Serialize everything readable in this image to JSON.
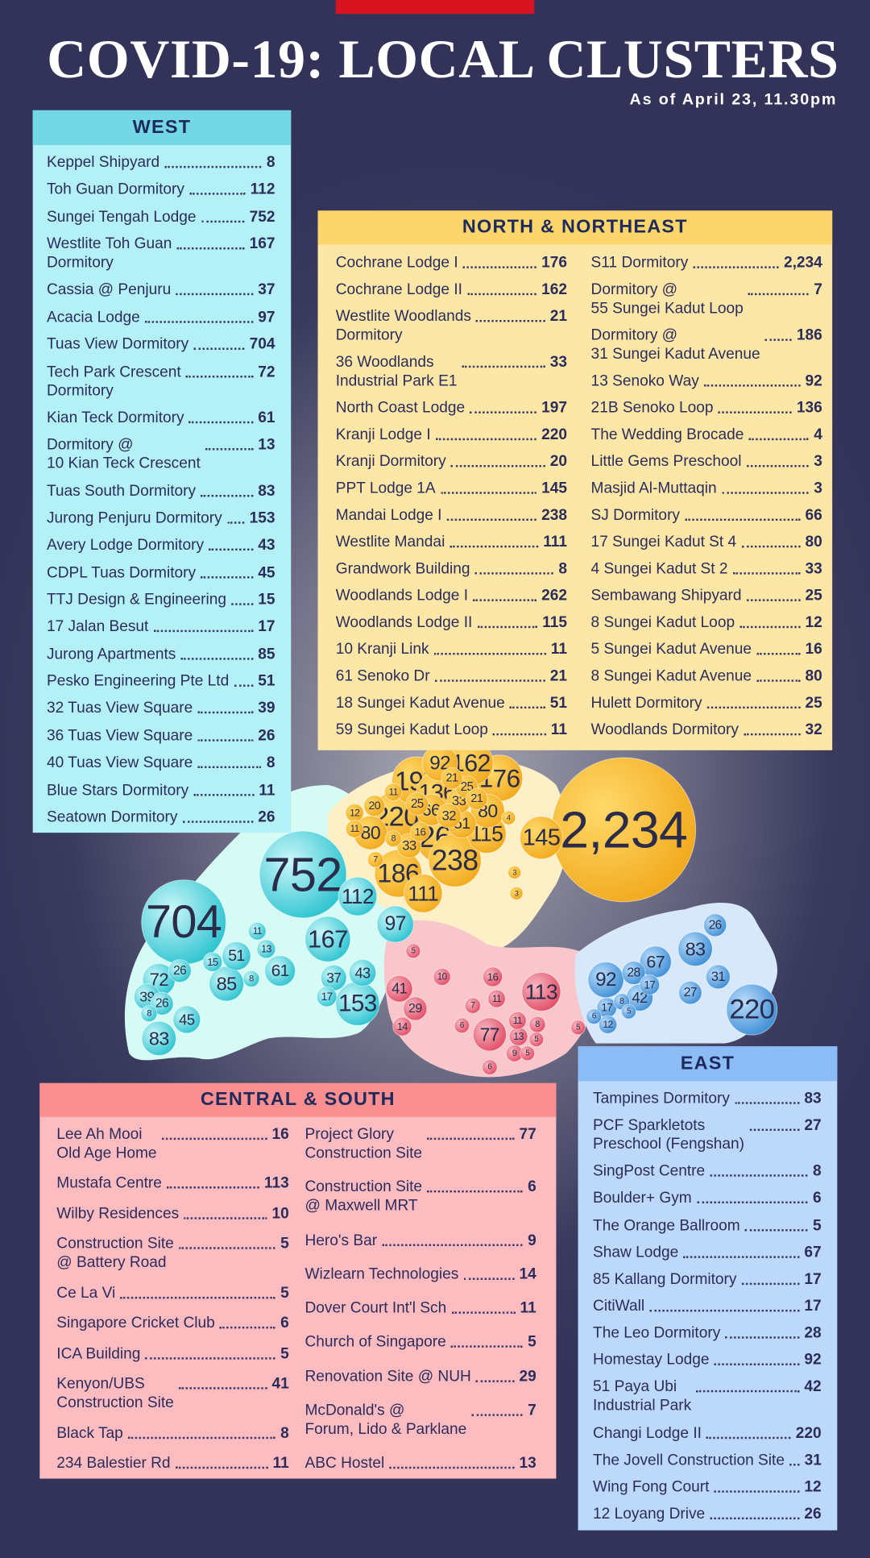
{
  "header": {
    "title": "COVID-19: LOCAL CLUSTERS",
    "subtitle": "As of April 23, 11.30pm"
  },
  "sections": [
    {
      "title": "WEST",
      "columns": [
        [
          {
            "name": "Keppel Shipyard",
            "count": 8
          },
          {
            "name": "Toh Guan Dormitory",
            "count": 112
          },
          {
            "name": "Sungei Tengah Lodge",
            "count": 752
          },
          {
            "name": "Westlite Toh Guan\nDormitory",
            "count": 167
          },
          {
            "name": "Cassia @ Penjuru",
            "count": 37
          },
          {
            "name": "Acacia Lodge",
            "count": 97
          },
          {
            "name": "Tuas View Dormitory",
            "count": 704
          },
          {
            "name": "Tech Park Crescent\nDormitory",
            "count": 72
          },
          {
            "name": "Kian Teck Dormitory",
            "count": 61
          },
          {
            "name": "Dormitory @\n10 Kian Teck Crescent",
            "count": 13
          },
          {
            "name": "Tuas South Dormitory",
            "count": 83
          },
          {
            "name": "Jurong Penjuru Dormitory",
            "count": 153
          },
          {
            "name": "Avery Lodge Dormitory",
            "count": 43
          },
          {
            "name": "CDPL Tuas Dormitory",
            "count": 45
          },
          {
            "name": "TTJ Design & Engineering",
            "count": 15
          },
          {
            "name": "17 Jalan Besut",
            "count": 17
          },
          {
            "name": "Jurong Apartments",
            "count": 85
          },
          {
            "name": "Pesko Engineering Pte Ltd",
            "count": 51
          },
          {
            "name": "32 Tuas View Square",
            "count": 39
          },
          {
            "name": "36 Tuas View Square",
            "count": 26
          },
          {
            "name": "40 Tuas View Square",
            "count": 8
          },
          {
            "name": "Blue Stars Dormitory",
            "count": 11
          },
          {
            "name": "Seatown Dormitory",
            "count": 26
          }
        ]
      ]
    },
    {
      "title": "NORTH & NORTHEAST",
      "columns": [
        [
          {
            "name": "Cochrane Lodge I",
            "count": 176
          },
          {
            "name": "Cochrane Lodge II",
            "count": 162
          },
          {
            "name": "Westlite Woodlands\nDormitory",
            "count": 21
          },
          {
            "name": "36 Woodlands\nIndustrial Park E1",
            "count": 33
          },
          {
            "name": "North Coast Lodge",
            "count": 197
          },
          {
            "name": "Kranji Lodge I",
            "count": 220
          },
          {
            "name": "Kranji Dormitory",
            "count": 20
          },
          {
            "name": "PPT Lodge 1A",
            "count": 145
          },
          {
            "name": "Mandai Lodge I",
            "count": 238
          },
          {
            "name": "Westlite Mandai",
            "count": 111
          },
          {
            "name": "Grandwork Building",
            "count": 8
          },
          {
            "name": "Woodlands Lodge I",
            "count": 262
          },
          {
            "name": "Woodlands Lodge II",
            "count": 115
          },
          {
            "name": "10 Kranji Link",
            "count": 11
          },
          {
            "name": "61 Senoko Dr",
            "count": 21
          },
          {
            "name": "18 Sungei Kadut Avenue",
            "count": 51
          },
          {
            "name": "59 Sungei Kadut Loop",
            "count": 11
          }
        ],
        [
          {
            "name": "S11 Dormitory",
            "count": {
              "value": 2234,
              "label": "2,234"
            }
          },
          {
            "name": "Dormitory @\n55 Sungei Kadut Loop",
            "count": 7
          },
          {
            "name": "Dormitory @\n31 Sungei Kadut Avenue",
            "count": 186
          },
          {
            "name": "13 Senoko Way",
            "count": 92
          },
          {
            "name": "21B Senoko Loop",
            "count": 136
          },
          {
            "name": "The Wedding Brocade",
            "count": 4
          },
          {
            "name": "Little Gems Preschool",
            "count": 3
          },
          {
            "name": "Masjid Al-Muttaqin",
            "count": 3
          },
          {
            "name": "SJ Dormitory",
            "count": 66
          },
          {
            "name": "17 Sungei Kadut St 4",
            "count": 80
          },
          {
            "name": "4 Sungei Kadut St 2",
            "count": 33
          },
          {
            "name": "Sembawang Shipyard",
            "count": 25
          },
          {
            "name": "8 Sungei Kadut Loop",
            "count": 12
          },
          {
            "name": "5 Sungei Kadut Avenue",
            "count": 16
          },
          {
            "name": "8 Sungei Kadut Avenue",
            "count": 80
          },
          {
            "name": "Hulett Dormitory",
            "count": 25
          },
          {
            "name": "Woodlands Dormitory",
            "count": 32
          }
        ]
      ]
    },
    {
      "title": "CENTRAL & SOUTH",
      "columns": [
        [
          {
            "name": "Lee Ah Mooi\nOld Age Home",
            "count": 16
          },
          {
            "name": "Mustafa Centre",
            "count": 113
          },
          {
            "name": "Wilby Residences",
            "count": 10
          },
          {
            "name": "Construction Site\n@ Battery Road",
            "count": 5
          },
          {
            "name": "Ce La Vi",
            "count": 5
          },
          {
            "name": "Singapore Cricket Club",
            "count": 6
          },
          {
            "name": "ICA Building",
            "count": 5
          },
          {
            "name": "Kenyon/UBS\nConstruction Site",
            "count": 41
          },
          {
            "name": "Black Tap",
            "count": 8
          },
          {
            "name": "234 Balestier Rd",
            "count": 11
          }
        ],
        [
          {
            "name": "Project Glory\nConstruction Site",
            "count": 77
          },
          {
            "name": "Construction Site\n@ Maxwell MRT",
            "count": 6
          },
          {
            "name": "Hero's Bar",
            "count": 9
          },
          {
            "name": "Wizlearn Technologies",
            "count": 14
          },
          {
            "name": "Dover Court Int'l Sch",
            "count": 11
          },
          {
            "name": "Church of Singapore",
            "count": 5
          },
          {
            "name": "Renovation Site @ NUH",
            "count": 29
          },
          {
            "name": "McDonald's @\nForum, Lido & Parklane",
            "count": 7
          },
          {
            "name": "ABC Hostel",
            "count": 13
          }
        ]
      ]
    },
    {
      "title": "EAST",
      "columns": [
        [
          {
            "name": "Tampines Dormitory",
            "count": 83
          },
          {
            "name": "PCF Sparkletots\nPreschool (Fengshan)",
            "count": 27
          },
          {
            "name": "SingPost Centre",
            "count": 8
          },
          {
            "name": "Boulder+ Gym",
            "count": 6
          },
          {
            "name": "The Orange Ballroom",
            "count": 5
          },
          {
            "name": "Shaw Lodge",
            "count": 67
          },
          {
            "name": "85 Kallang Dormitory",
            "count": 17
          },
          {
            "name": "CitiWall",
            "count": 17
          },
          {
            "name": "The Leo Dormitory",
            "count": 28
          },
          {
            "name": "Homestay Lodge",
            "count": 92
          },
          {
            "name": "51 Paya Ubi\nIndustrial Park",
            "count": 42
          },
          {
            "name": "Changi Lodge II",
            "count": 220
          },
          {
            "name": "The Jovell Construction Site",
            "count": 31
          },
          {
            "name": "Wing Fong Court",
            "count": 12
          },
          {
            "name": "12 Loyang Drive",
            "count": 26
          }
        ]
      ]
    }
  ]
}
